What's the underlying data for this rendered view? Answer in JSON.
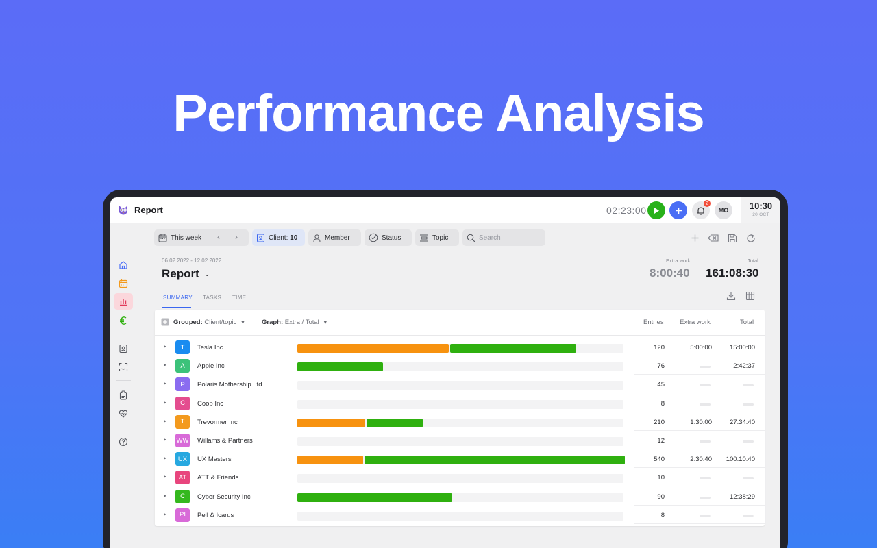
{
  "hero": {
    "title": "Performance Analysis"
  },
  "app": {
    "title": "Report",
    "timer": "02:23:00",
    "notifications_count": "2",
    "avatar_initials": "MO",
    "clock_time": "10:30",
    "clock_date": "20 OCT"
  },
  "filters": {
    "period": "This week",
    "client_label": "Client:",
    "client_count": "10",
    "member": "Member",
    "status": "Status",
    "topic": "Topic",
    "search_placeholder": "Search"
  },
  "report": {
    "date_range": "06.02.2022 - 12.02.2022",
    "title": "Report",
    "extra_work_label": "Extra work",
    "extra_work_value": "8:00:40",
    "total_label": "Total",
    "total_value": "161:08:30"
  },
  "tabs": [
    "SUMMARY",
    "TASKS",
    "TIME"
  ],
  "table": {
    "grouped_label": "Grouped:",
    "grouped_value": "Client/topic",
    "graph_label": "Graph:",
    "graph_value": "Extra / Total",
    "columns": {
      "entries": "Entries",
      "extra": "Extra work",
      "total": "Total"
    },
    "colors": {
      "extra": "#f7920f",
      "total": "#2fb00f"
    },
    "rows": [
      {
        "tag": "T",
        "tag_color": "#1a8cf0",
        "name": "Tesla Inc",
        "entries": "120",
        "extra": "5:00:00",
        "total": "15:00:00",
        "extra_frac": 0.465,
        "total_frac": 0.385
      },
      {
        "tag": "A",
        "tag_color": "#3cc27a",
        "name": "Apple Inc",
        "entries": "76",
        "extra": "",
        "total": "2:42:37",
        "extra_frac": 0,
        "total_frac": 0.262
      },
      {
        "tag": "P",
        "tag_color": "#8a6cf0",
        "name": "Polaris Mothership Ltd.",
        "entries": "45",
        "extra": "",
        "total": "",
        "extra_frac": 0,
        "total_frac": 0
      },
      {
        "tag": "C",
        "tag_color": "#e44d8f",
        "name": "Coop Inc",
        "entries": "8",
        "extra": "",
        "total": "",
        "extra_frac": 0,
        "total_frac": 0
      },
      {
        "tag": "T",
        "tag_color": "#f39a1e",
        "name": "Trevormer Inc",
        "entries": "210",
        "extra": "1:30:00",
        "total": "27:34:40",
        "extra_frac": 0.208,
        "total_frac": 0.172
      },
      {
        "tag": "WW",
        "tag_color": "#d86ad8",
        "name": "Willams & Partners",
        "entries": "12",
        "extra": "",
        "total": "",
        "extra_frac": 0,
        "total_frac": 0
      },
      {
        "tag": "UX",
        "tag_color": "#27a8e0",
        "name": "UX Masters",
        "entries": "540",
        "extra": "2:30:40",
        "total": "100:10:40",
        "extra_frac": 0.202,
        "total_frac": 0.797
      },
      {
        "tag": "AT",
        "tag_color": "#e8457d",
        "name": "ATT & Friends",
        "entries": "10",
        "extra": "",
        "total": "",
        "extra_frac": 0,
        "total_frac": 0
      },
      {
        "tag": "C",
        "tag_color": "#34b81e",
        "name": "Cyber Security Inc",
        "entries": "90",
        "extra": "",
        "total": "12:38:29",
        "extra_frac": 0,
        "total_frac": 0.475
      },
      {
        "tag": "PI",
        "tag_color": "#d86ad8",
        "name": "Pell & Icarus",
        "entries": "8",
        "extra": "",
        "total": "",
        "extra_frac": 0,
        "total_frac": 0
      }
    ]
  }
}
